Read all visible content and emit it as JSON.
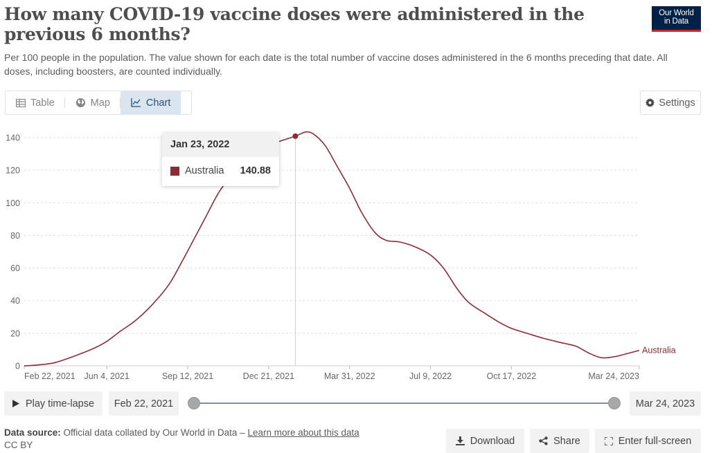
{
  "header": {
    "title": "How many COVID-19 vaccine doses were administered in the previous 6 months?",
    "subtitle": "Per 100 people in the population. The value shown for each date is the total number of vaccine doses administered in the 6 months preceding that date. All doses, including boosters, are counted individually.",
    "logo_line1": "Our World",
    "logo_line2": "in Data",
    "logo_bg": "#002147",
    "logo_accent": "#ce261e"
  },
  "tabs": [
    {
      "label": "Table",
      "icon": "table-icon",
      "active": false
    },
    {
      "label": "Map",
      "icon": "globe-icon",
      "active": false
    },
    {
      "label": "Chart",
      "icon": "line-chart-icon",
      "active": true
    }
  ],
  "settings_label": "Settings",
  "tooltip": {
    "date": "Jan 23, 2022",
    "entity": "Australia",
    "value": "140.88"
  },
  "timeline": {
    "play_label": "Play time-lapse",
    "start_date": "Feb 22, 2021",
    "end_date": "Mar 24, 2023"
  },
  "footer": {
    "source_label": "Data source:",
    "source_text": "Official data collated by Our World in Data – ",
    "source_link": "Learn more about this data",
    "license": "CC BY",
    "download_label": "Download",
    "share_label": "Share",
    "fullscreen_label": "Enter full-screen"
  },
  "chart_data": {
    "type": "line",
    "title": "How many COVID-19 vaccine doses were administered in the previous 6 months?",
    "xlabel": "",
    "ylabel": "",
    "ylim": [
      0,
      140
    ],
    "yticks": [
      0,
      20,
      40,
      60,
      80,
      100,
      120,
      140
    ],
    "xlim": [
      "2021-02-22",
      "2023-03-24"
    ],
    "xticks": [
      {
        "date": "2021-02-22",
        "label": "Feb 22, 2021"
      },
      {
        "date": "2021-06-04",
        "label": "Jun 4, 2021"
      },
      {
        "date": "2021-09-12",
        "label": "Sep 12, 2021"
      },
      {
        "date": "2021-12-21",
        "label": "Dec 21, 2021"
      },
      {
        "date": "2022-03-31",
        "label": "Mar 31, 2022"
      },
      {
        "date": "2022-07-09",
        "label": "Jul 9, 2022"
      },
      {
        "date": "2022-10-17",
        "label": "Oct 17, 2022"
      },
      {
        "date": "2023-03-24",
        "label": "Mar 24, 2023"
      }
    ],
    "grid": true,
    "line_color": "#8c2c35",
    "highlight": {
      "date": "2022-01-23",
      "value": 140.88
    },
    "series": [
      {
        "name": "Australia",
        "x": [
          "2021-02-22",
          "2021-03-10",
          "2021-04-01",
          "2021-04-25",
          "2021-05-20",
          "2021-06-04",
          "2021-06-20",
          "2021-07-10",
          "2021-07-31",
          "2021-08-20",
          "2021-09-05",
          "2021-09-20",
          "2021-10-05",
          "2021-10-20",
          "2021-11-05",
          "2021-11-20",
          "2021-12-05",
          "2021-12-20",
          "2022-01-05",
          "2022-01-23",
          "2022-02-05",
          "2022-02-15",
          "2022-03-01",
          "2022-03-15",
          "2022-03-31",
          "2022-04-15",
          "2022-05-01",
          "2022-05-15",
          "2022-06-01",
          "2022-06-20",
          "2022-07-09",
          "2022-07-25",
          "2022-08-10",
          "2022-08-25",
          "2022-09-15",
          "2022-10-01",
          "2022-10-17",
          "2022-11-05",
          "2022-11-25",
          "2022-12-15",
          "2023-01-05",
          "2023-01-20",
          "2023-02-05",
          "2023-02-20",
          "2023-03-05",
          "2023-03-24"
        ],
        "values": [
          0,
          0.5,
          2,
          6,
          11,
          15,
          21,
          28,
          38,
          50,
          64,
          78,
          92,
          106,
          117,
          126,
          131,
          135,
          138,
          140.88,
          143.5,
          142,
          135,
          123,
          109,
          94,
          82,
          77,
          76,
          73,
          68,
          60,
          48,
          39,
          32,
          27,
          23,
          20,
          17,
          14.5,
          12,
          8,
          5,
          5.5,
          7,
          9.5
        ]
      }
    ],
    "end_label": "Australia"
  }
}
